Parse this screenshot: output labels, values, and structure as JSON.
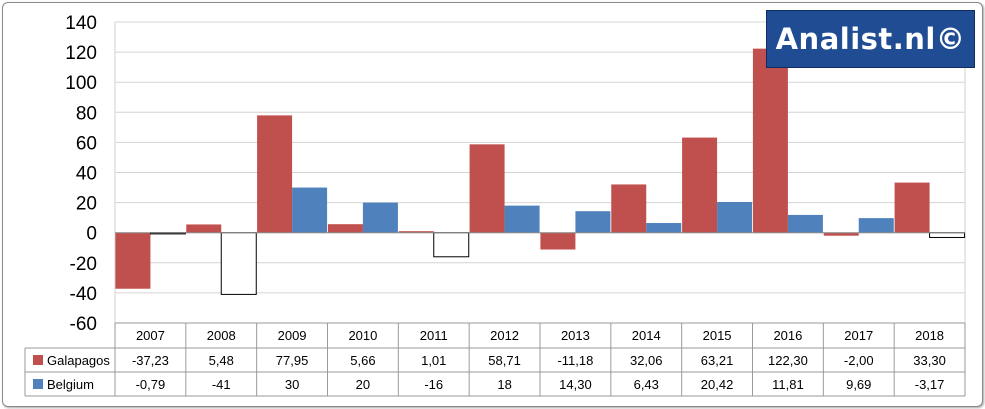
{
  "watermark": "Analist.nl©",
  "chart_data": {
    "type": "bar",
    "categories": [
      "2007",
      "2008",
      "2009",
      "2010",
      "2011",
      "2012",
      "2013",
      "2014",
      "2015",
      "2016",
      "2017",
      "2018"
    ],
    "series": [
      {
        "name": "Galapagos",
        "values": [
          -37.23,
          5.48,
          77.95,
          5.66,
          1.01,
          58.71,
          -11.18,
          32.06,
          63.21,
          122.3,
          -2.0,
          33.3
        ],
        "labels": [
          "-37,23",
          "5,48",
          "77,95",
          "5,66",
          "1,01",
          "58,71",
          "-11,18",
          "32,06",
          "63,21",
          "122,30",
          "-2,00",
          "33,30"
        ],
        "color": "#c0504d"
      },
      {
        "name": "Belgium",
        "values": [
          -0.79,
          -41,
          30,
          20,
          -16,
          18,
          14.3,
          6.43,
          20.42,
          11.81,
          9.69,
          -3.17
        ],
        "labels": [
          "-0,79",
          "-41",
          "30",
          "20",
          "-16",
          "18",
          "14,30",
          "6,43",
          "20,42",
          "11,81",
          "9,69",
          "-3,17"
        ],
        "color": "#4f81bd",
        "negative_fill": "#ffffff"
      }
    ],
    "ylim": [
      -60,
      140
    ],
    "yticks": [
      "140",
      "120",
      "100",
      "80",
      "60",
      "40",
      "20",
      "0",
      "-20",
      "-40",
      "-60"
    ],
    "grid": true,
    "legend": "data-table"
  }
}
